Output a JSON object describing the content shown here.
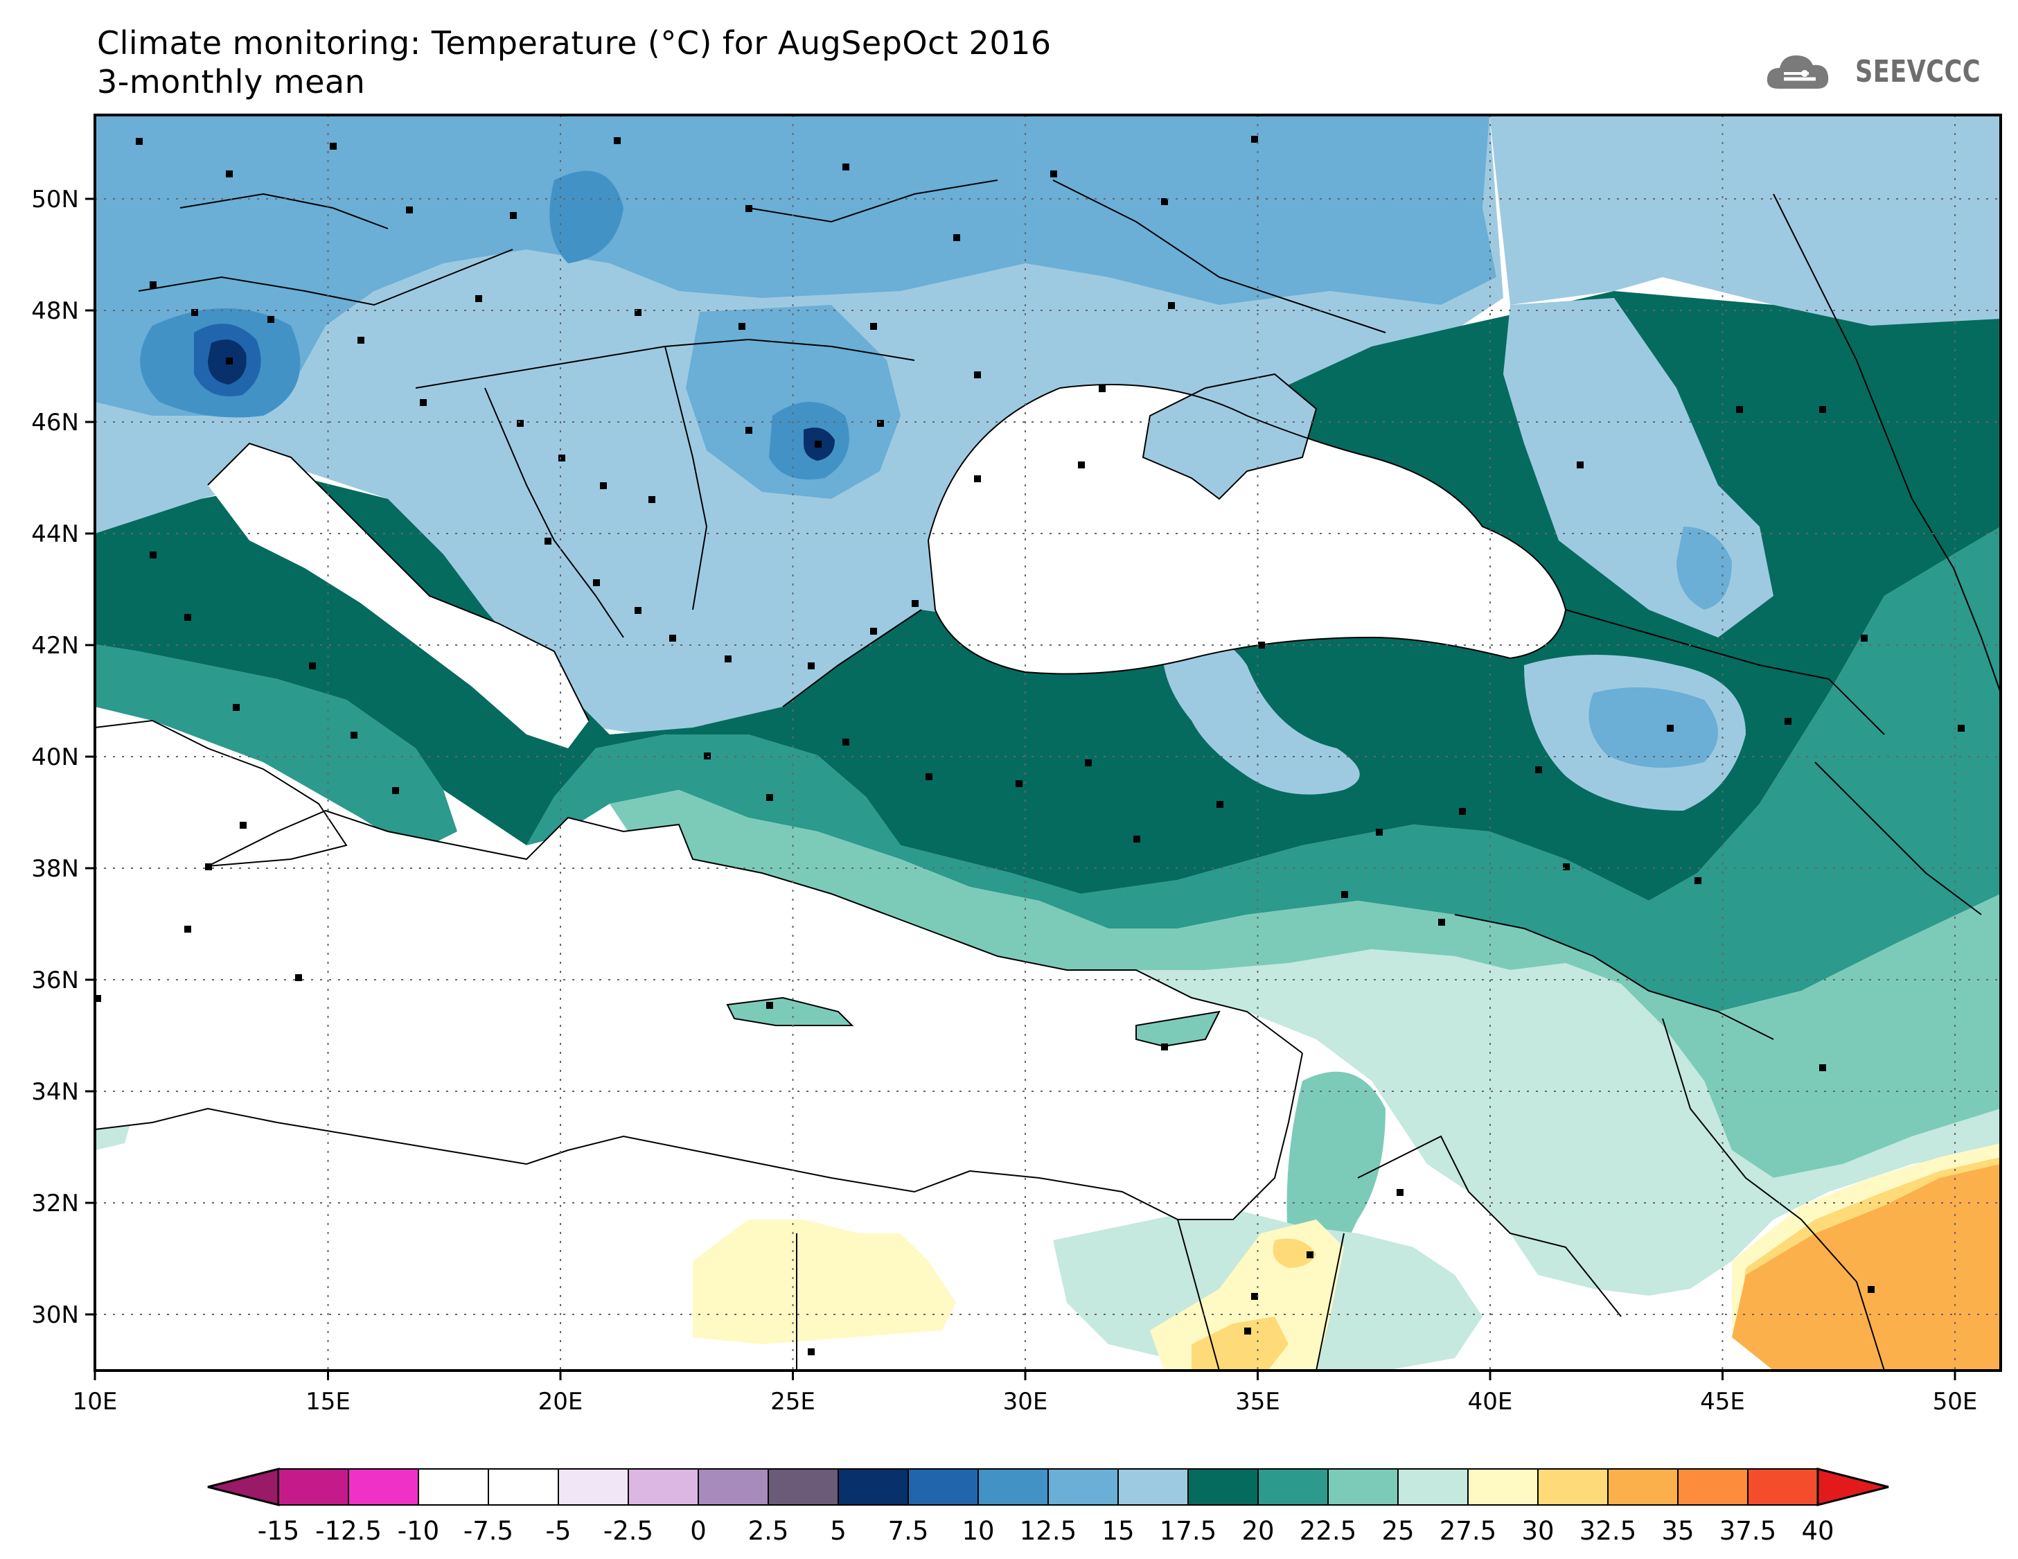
{
  "title": {
    "line1": "Climate monitoring: Temperature (°C) for AugSepOct 2016",
    "line2": "3-monthly mean"
  },
  "logo": {
    "text": "SEEVCCC",
    "icon": "cloud-icon"
  },
  "map": {
    "lon_range": [
      10,
      51
    ],
    "lat_range": [
      29,
      51.5
    ],
    "lon_ticks": [
      "10E",
      "15E",
      "20E",
      "25E",
      "30E",
      "35E",
      "40E",
      "45E",
      "50E"
    ],
    "lat_ticks": [
      "30N",
      "32N",
      "34N",
      "36N",
      "38N",
      "40N",
      "42N",
      "44N",
      "46N",
      "48N",
      "50N"
    ],
    "grid": true,
    "colors": {
      "c17_5_20": "#056b5e",
      "c15_17_5": "#9ecae1",
      "c12_5_15": "#6baed6",
      "c10_12_5": "#4292c6",
      "c7_5_10": "#2166ac",
      "c5_7_5": "#08306b",
      "c20_22_5": "#2c9a8c",
      "c22_5_25": "#7ccbb9",
      "c25_27_5": "#c5e8df",
      "c27_5_30": "#fffac4",
      "c30_32_5": "#fedb78",
      "c32_5_35": "#fbb04b"
    }
  },
  "colorbar": {
    "colors": [
      "#991a66",
      "#c51b8a",
      "#f031c8",
      "#ffffff",
      "#f1e6f5",
      "#dcb7e3",
      "#a88bbd",
      "#6b5a78",
      "#08306b",
      "#2166ac",
      "#4292c6",
      "#6baed6",
      "#9ecae1",
      "#056b5e",
      "#2c9a8c",
      "#7ccbb9",
      "#c5e8df",
      "#fffac4",
      "#fedb78",
      "#fbb04b",
      "#fd8d3c",
      "#f44d2c",
      "#e31a1c",
      "#d12a2a"
    ],
    "labels": [
      "-15",
      "-12.5",
      "-10",
      "-7.5",
      "-5",
      "-2.5",
      "0",
      "2.5",
      "5",
      "7.5",
      "10",
      "12.5",
      "15",
      "17.5",
      "20",
      "22.5",
      "25",
      "27.5",
      "30",
      "32.5",
      "35",
      "37.5",
      "40"
    ]
  }
}
